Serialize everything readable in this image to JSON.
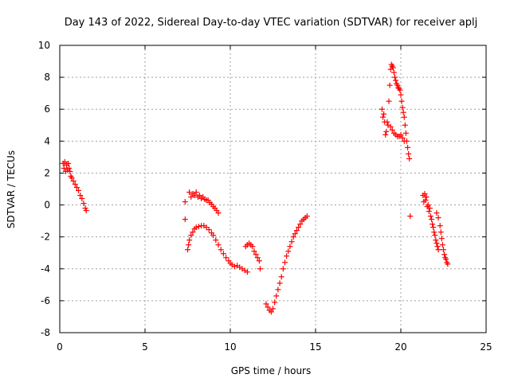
{
  "chart_data": {
    "type": "scatter",
    "title": "Day 143 of 2022, Sidereal Day-to-day VTEC variation (SDTVAR) for receiver aplj",
    "xlabel": "GPS time / hours",
    "ylabel": "SDTVAR / TECUs",
    "xlim": [
      0,
      25
    ],
    "ylim": [
      -8,
      10
    ],
    "xticks": [
      "0",
      "5",
      "10",
      "15",
      "20",
      "25"
    ],
    "yticks": [
      "-8",
      "-6",
      "-4",
      "-2",
      "0",
      "2",
      "4",
      "6",
      "8",
      "10"
    ],
    "grid": true,
    "marker": "+",
    "color": "#ff0000",
    "series": [
      {
        "points": [
          [
            0.2,
            2.6
          ],
          [
            0.25,
            2.3
          ],
          [
            0.3,
            2.7
          ],
          [
            0.35,
            2.1
          ],
          [
            0.4,
            2.5
          ],
          [
            0.45,
            2.2
          ],
          [
            0.5,
            2.6
          ],
          [
            0.55,
            2.3
          ],
          [
            0.6,
            2.1
          ],
          [
            0.65,
            1.8
          ],
          [
            0.7,
            1.7
          ],
          [
            0.8,
            1.5
          ],
          [
            0.9,
            1.3
          ],
          [
            1.0,
            1.1
          ],
          [
            1.1,
            0.9
          ],
          [
            1.2,
            0.6
          ],
          [
            1.3,
            0.4
          ],
          [
            1.4,
            0.1
          ],
          [
            1.5,
            -0.2
          ],
          [
            1.55,
            -0.35
          ],
          [
            7.35,
            0.2
          ],
          [
            7.35,
            -0.9
          ],
          [
            7.5,
            -2.8
          ],
          [
            7.55,
            -2.5
          ],
          [
            7.6,
            -2.2
          ],
          [
            7.7,
            -1.9
          ],
          [
            7.8,
            -1.7
          ],
          [
            7.9,
            -1.5
          ],
          [
            8.0,
            -1.4
          ],
          [
            8.15,
            -1.35
          ],
          [
            8.3,
            -1.3
          ],
          [
            8.45,
            -1.3
          ],
          [
            8.6,
            -1.4
          ],
          [
            8.75,
            -1.55
          ],
          [
            8.9,
            -1.75
          ],
          [
            9.0,
            -1.9
          ],
          [
            9.15,
            -2.2
          ],
          [
            9.3,
            -2.5
          ],
          [
            9.45,
            -2.8
          ],
          [
            9.6,
            -3.05
          ],
          [
            9.75,
            -3.3
          ],
          [
            9.9,
            -3.5
          ],
          [
            10.0,
            -3.65
          ],
          [
            10.1,
            -3.75
          ],
          [
            10.25,
            -3.85
          ],
          [
            10.4,
            -3.8
          ],
          [
            10.55,
            -3.9
          ],
          [
            10.7,
            -4.0
          ],
          [
            10.85,
            -4.1
          ],
          [
            11.0,
            -4.2
          ],
          [
            7.6,
            0.8
          ],
          [
            7.7,
            0.5
          ],
          [
            7.8,
            0.7
          ],
          [
            7.9,
            0.6
          ],
          [
            8.0,
            0.8
          ],
          [
            8.1,
            0.5
          ],
          [
            8.2,
            0.6
          ],
          [
            8.3,
            0.4
          ],
          [
            8.4,
            0.5
          ],
          [
            8.5,
            0.35
          ],
          [
            8.6,
            0.3
          ],
          [
            8.7,
            0.3
          ],
          [
            8.8,
            0.15
          ],
          [
            8.9,
            0.05
          ],
          [
            9.0,
            -0.1
          ],
          [
            9.1,
            -0.2
          ],
          [
            9.2,
            -0.35
          ],
          [
            9.3,
            -0.5
          ],
          [
            10.9,
            -2.6
          ],
          [
            11.0,
            -2.5
          ],
          [
            11.1,
            -2.4
          ],
          [
            11.2,
            -2.5
          ],
          [
            11.3,
            -2.6
          ],
          [
            11.4,
            -2.9
          ],
          [
            11.5,
            -3.1
          ],
          [
            11.6,
            -3.3
          ],
          [
            11.7,
            -3.5
          ],
          [
            11.75,
            -4.0
          ],
          [
            12.1,
            -6.2
          ],
          [
            12.2,
            -6.4
          ],
          [
            12.3,
            -6.6
          ],
          [
            12.4,
            -6.7
          ],
          [
            12.5,
            -6.5
          ],
          [
            12.6,
            -6.1
          ],
          [
            12.7,
            -5.7
          ],
          [
            12.8,
            -5.3
          ],
          [
            12.9,
            -4.9
          ],
          [
            13.0,
            -4.5
          ],
          [
            13.1,
            -4.0
          ],
          [
            13.2,
            -3.6
          ],
          [
            13.3,
            -3.2
          ],
          [
            13.4,
            -2.9
          ],
          [
            13.5,
            -2.6
          ],
          [
            13.6,
            -2.3
          ],
          [
            13.7,
            -2.0
          ],
          [
            13.8,
            -1.8
          ],
          [
            13.9,
            -1.6
          ],
          [
            14.0,
            -1.4
          ],
          [
            14.1,
            -1.2
          ],
          [
            14.2,
            -1.0
          ],
          [
            14.3,
            -0.9
          ],
          [
            14.4,
            -0.8
          ],
          [
            14.5,
            -0.7
          ],
          [
            18.9,
            6.0
          ],
          [
            18.95,
            5.5
          ],
          [
            19.0,
            5.7
          ],
          [
            19.05,
            5.2
          ],
          [
            19.1,
            4.4
          ],
          [
            19.15,
            4.6
          ],
          [
            19.2,
            5.2
          ],
          [
            19.25,
            5.0
          ],
          [
            19.3,
            6.5
          ],
          [
            19.35,
            7.5
          ],
          [
            19.4,
            8.5
          ],
          [
            19.45,
            8.8
          ],
          [
            19.5,
            8.7
          ],
          [
            19.55,
            8.6
          ],
          [
            19.6,
            8.3
          ],
          [
            19.65,
            8.0
          ],
          [
            19.7,
            7.8
          ],
          [
            19.75,
            7.6
          ],
          [
            19.8,
            7.5
          ],
          [
            19.85,
            7.35
          ],
          [
            19.9,
            7.3
          ],
          [
            19.95,
            7.2
          ],
          [
            20.0,
            6.9
          ],
          [
            20.05,
            6.5
          ],
          [
            20.1,
            6.1
          ],
          [
            20.15,
            5.8
          ],
          [
            20.2,
            5.5
          ],
          [
            20.25,
            5.0
          ],
          [
            20.3,
            4.5
          ],
          [
            20.35,
            4.0
          ],
          [
            20.4,
            3.6
          ],
          [
            20.45,
            3.2
          ],
          [
            20.5,
            2.9
          ],
          [
            19.4,
            4.9
          ],
          [
            19.5,
            4.7
          ],
          [
            19.6,
            4.5
          ],
          [
            19.7,
            4.4
          ],
          [
            19.8,
            4.3
          ],
          [
            19.9,
            4.3
          ],
          [
            20.0,
            4.4
          ],
          [
            20.1,
            4.2
          ],
          [
            20.2,
            4.0
          ],
          [
            20.55,
            -0.7
          ],
          [
            21.3,
            0.6
          ],
          [
            21.35,
            0.2
          ],
          [
            21.4,
            0.7
          ],
          [
            21.45,
            0.3
          ],
          [
            21.5,
            0.5
          ],
          [
            21.55,
            -0.1
          ],
          [
            21.6,
            0.0
          ],
          [
            21.65,
            -0.4
          ],
          [
            21.7,
            -0.2
          ],
          [
            21.75,
            -0.7
          ],
          [
            21.8,
            -0.9
          ],
          [
            21.85,
            -1.2
          ],
          [
            21.9,
            -1.4
          ],
          [
            21.95,
            -1.7
          ],
          [
            22.0,
            -1.9
          ],
          [
            22.05,
            -2.2
          ],
          [
            22.1,
            -2.4
          ],
          [
            22.15,
            -2.6
          ],
          [
            22.2,
            -2.8
          ],
          [
            22.1,
            -0.5
          ],
          [
            22.2,
            -0.8
          ],
          [
            22.3,
            -1.3
          ],
          [
            22.35,
            -1.7
          ],
          [
            22.4,
            -2.1
          ],
          [
            22.45,
            -2.5
          ],
          [
            22.5,
            -2.8
          ],
          [
            22.55,
            -3.1
          ],
          [
            22.6,
            -3.3
          ],
          [
            22.65,
            -3.4
          ],
          [
            22.7,
            -3.6
          ],
          [
            22.75,
            -3.7
          ]
        ]
      }
    ]
  }
}
